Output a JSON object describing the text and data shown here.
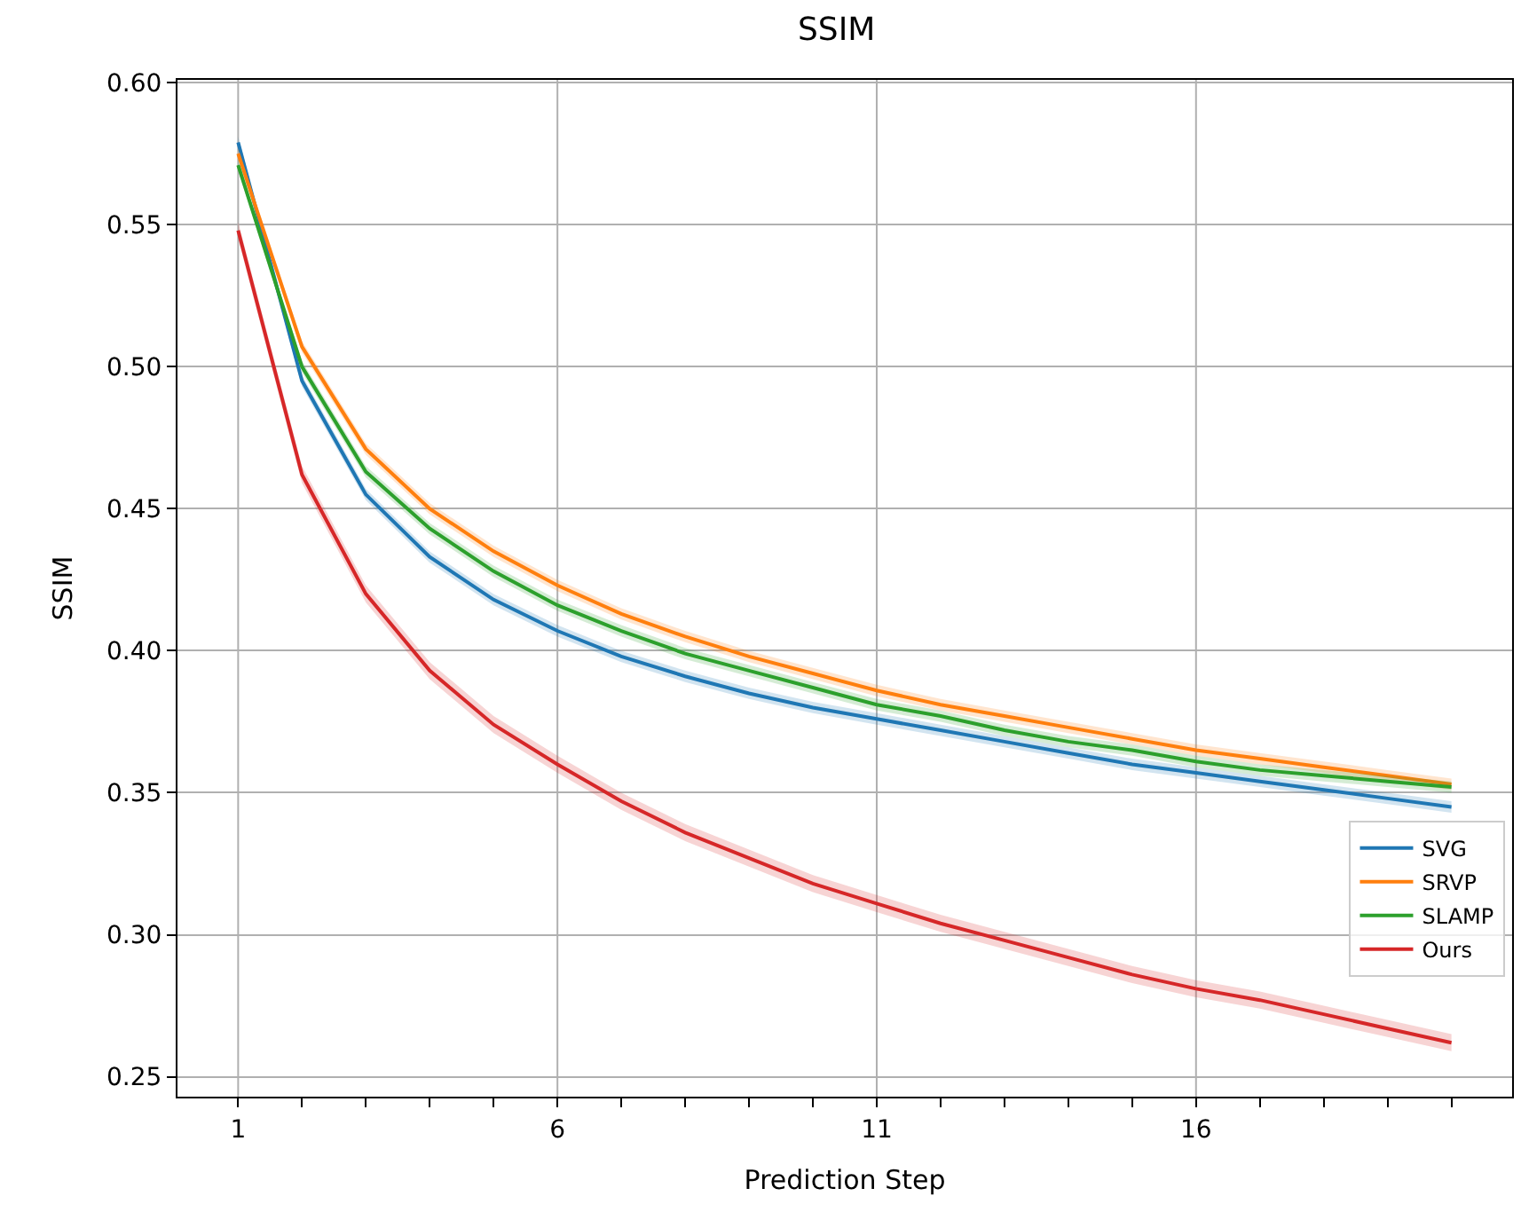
{
  "chart_data": {
    "type": "line",
    "title": "SSIM",
    "xlabel": "Prediction Step",
    "ylabel": "SSIM",
    "x": [
      1,
      2,
      3,
      4,
      5,
      6,
      7,
      8,
      9,
      10,
      11,
      12,
      13,
      14,
      15,
      16,
      17,
      18,
      19,
      20
    ],
    "series": [
      {
        "name": "SVG",
        "color": "#1f77b4",
        "values": [
          0.579,
          0.495,
          0.455,
          0.433,
          0.418,
          0.407,
          0.398,
          0.391,
          0.385,
          0.38,
          0.376,
          0.372,
          0.368,
          0.364,
          0.36,
          0.357,
          0.354,
          0.351,
          0.348,
          0.345
        ],
        "lower": [
          0.577,
          0.493,
          0.453,
          0.431,
          0.416,
          0.405,
          0.396,
          0.389,
          0.383,
          0.378,
          0.374,
          0.37,
          0.366,
          0.362,
          0.358,
          0.355,
          0.352,
          0.349,
          0.346,
          0.343
        ],
        "upper": [
          0.581,
          0.497,
          0.457,
          0.435,
          0.42,
          0.409,
          0.4,
          0.393,
          0.387,
          0.382,
          0.378,
          0.374,
          0.37,
          0.366,
          0.362,
          0.359,
          0.356,
          0.353,
          0.35,
          0.347
        ]
      },
      {
        "name": "SRVP",
        "color": "#ff7f0e",
        "values": [
          0.575,
          0.507,
          0.471,
          0.45,
          0.435,
          0.423,
          0.413,
          0.405,
          0.398,
          0.392,
          0.386,
          0.381,
          0.377,
          0.373,
          0.369,
          0.365,
          0.362,
          0.359,
          0.356,
          0.353
        ],
        "lower": [
          0.573,
          0.505,
          0.469,
          0.448,
          0.433,
          0.421,
          0.411,
          0.403,
          0.396,
          0.39,
          0.384,
          0.379,
          0.375,
          0.371,
          0.367,
          0.363,
          0.36,
          0.357,
          0.354,
          0.351
        ],
        "upper": [
          0.577,
          0.509,
          0.473,
          0.452,
          0.437,
          0.425,
          0.415,
          0.407,
          0.4,
          0.394,
          0.388,
          0.383,
          0.379,
          0.375,
          0.371,
          0.367,
          0.364,
          0.361,
          0.358,
          0.355
        ]
      },
      {
        "name": "SLAMP",
        "color": "#2ca02c",
        "values": [
          0.571,
          0.5,
          0.463,
          0.443,
          0.428,
          0.416,
          0.407,
          0.399,
          0.393,
          0.387,
          0.381,
          0.377,
          0.372,
          0.368,
          0.365,
          0.361,
          0.358,
          0.356,
          0.354,
          0.352
        ],
        "lower": [
          0.569,
          0.498,
          0.461,
          0.441,
          0.426,
          0.414,
          0.405,
          0.397,
          0.391,
          0.385,
          0.379,
          0.375,
          0.37,
          0.366,
          0.363,
          0.359,
          0.356,
          0.354,
          0.352,
          0.35
        ],
        "upper": [
          0.573,
          0.502,
          0.465,
          0.445,
          0.43,
          0.418,
          0.409,
          0.401,
          0.395,
          0.389,
          0.383,
          0.379,
          0.374,
          0.37,
          0.367,
          0.363,
          0.36,
          0.358,
          0.356,
          0.354
        ]
      },
      {
        "name": "Ours",
        "color": "#d62728",
        "values": [
          0.548,
          0.462,
          0.42,
          0.393,
          0.374,
          0.36,
          0.347,
          0.336,
          0.327,
          0.318,
          0.311,
          0.304,
          0.298,
          0.292,
          0.286,
          0.281,
          0.277,
          0.272,
          0.267,
          0.262
        ],
        "lower": [
          0.545,
          0.459,
          0.417,
          0.39,
          0.371,
          0.357,
          0.344,
          0.333,
          0.324,
          0.315,
          0.308,
          0.301,
          0.295,
          0.289,
          0.283,
          0.278,
          0.274,
          0.269,
          0.264,
          0.259
        ],
        "upper": [
          0.551,
          0.465,
          0.423,
          0.396,
          0.377,
          0.363,
          0.35,
          0.339,
          0.33,
          0.321,
          0.314,
          0.307,
          0.301,
          0.295,
          0.289,
          0.284,
          0.28,
          0.275,
          0.27,
          0.265
        ]
      }
    ],
    "xlim": [
      0.05,
      20.95
    ],
    "xticks": [
      1,
      {
        "value": 2,
        "label": null
      },
      {
        "value": 3,
        "label": null
      },
      {
        "value": 4,
        "label": null
      },
      {
        "value": 5,
        "label": null
      },
      6,
      {
        "value": 7,
        "label": null
      },
      {
        "value": 8,
        "label": null
      },
      {
        "value": 9,
        "label": null
      },
      {
        "value": 10,
        "label": null
      },
      11,
      {
        "value": 12,
        "label": null
      },
      {
        "value": 13,
        "label": null
      },
      {
        "value": 14,
        "label": null
      },
      {
        "value": 15,
        "label": null
      },
      16,
      {
        "value": 17,
        "label": null
      },
      {
        "value": 18,
        "label": null
      },
      {
        "value": 19,
        "label": null
      },
      {
        "value": 20,
        "label": null
      }
    ],
    "ylim": [
      0.243,
      0.601
    ],
    "yticks": [
      {
        "value": 0.25,
        "label": "0.25"
      },
      {
        "value": 0.3,
        "label": "0.30"
      },
      {
        "value": 0.35,
        "label": "0.35"
      },
      {
        "value": 0.4,
        "label": "0.40"
      },
      {
        "value": 0.45,
        "label": "0.45"
      },
      {
        "value": 0.5,
        "label": "0.50"
      },
      {
        "value": 0.55,
        "label": "0.55"
      },
      {
        "value": 0.6,
        "label": "0.60"
      }
    ],
    "grid": true,
    "legend": "bottom right"
  }
}
